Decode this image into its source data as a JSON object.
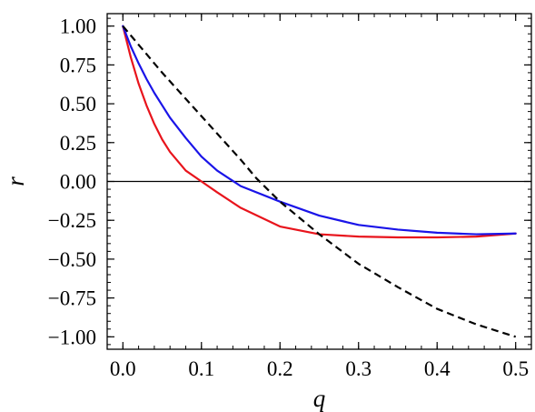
{
  "chart_data": {
    "type": "line",
    "xlabel": "q",
    "ylabel": "r",
    "xlim": [
      -0.02,
      0.52
    ],
    "ylim": [
      -1.08,
      1.08
    ],
    "xticks": [
      0.0,
      0.1,
      0.2,
      0.3,
      0.4,
      0.5
    ],
    "xtick_labels": [
      "0.0",
      "0.1",
      "0.2",
      "0.3",
      "0.4",
      "0.5"
    ],
    "yticks": [
      1.0,
      0.75,
      0.5,
      0.25,
      0.0,
      -0.25,
      -0.5,
      -0.75,
      -1.0
    ],
    "ytick_labels": [
      "1.00",
      "0.75",
      "0.50",
      "0.25",
      "0.00",
      "−0.25",
      "−0.50",
      "−0.75",
      "−1.00"
    ],
    "x_minor_step": 0.02,
    "y_minor_step": 0.05,
    "zero_line": true,
    "grid": false,
    "series": [
      {
        "color": "#e8141c",
        "style": "solid",
        "x": [
          0.0,
          0.01,
          0.02,
          0.03,
          0.04,
          0.05,
          0.06,
          0.08,
          0.1,
          0.12,
          0.15,
          0.2,
          0.25,
          0.3,
          0.35,
          0.4,
          0.45,
          0.5
        ],
        "y": [
          1.0,
          0.8,
          0.63,
          0.49,
          0.37,
          0.27,
          0.19,
          0.07,
          0.0,
          -0.07,
          -0.17,
          -0.29,
          -0.34,
          -0.355,
          -0.36,
          -0.36,
          -0.355,
          -0.335
        ]
      },
      {
        "color": "#1a14e8",
        "style": "solid",
        "x": [
          0.0,
          0.01,
          0.02,
          0.03,
          0.04,
          0.05,
          0.06,
          0.08,
          0.1,
          0.12,
          0.15,
          0.2,
          0.25,
          0.3,
          0.35,
          0.4,
          0.45,
          0.5
        ],
        "y": [
          1.0,
          0.87,
          0.76,
          0.66,
          0.57,
          0.49,
          0.41,
          0.28,
          0.16,
          0.07,
          -0.03,
          -0.13,
          -0.22,
          -0.28,
          -0.31,
          -0.33,
          -0.34,
          -0.335
        ]
      },
      {
        "color": "#000000",
        "style": "dashed",
        "x": [
          0.0,
          0.05,
          0.1,
          0.15,
          0.17,
          0.2,
          0.25,
          0.3,
          0.35,
          0.4,
          0.45,
          0.5
        ],
        "y": [
          1.0,
          0.7,
          0.42,
          0.14,
          0.02,
          -0.13,
          -0.34,
          -0.53,
          -0.68,
          -0.82,
          -0.92,
          -1.0
        ]
      }
    ]
  }
}
